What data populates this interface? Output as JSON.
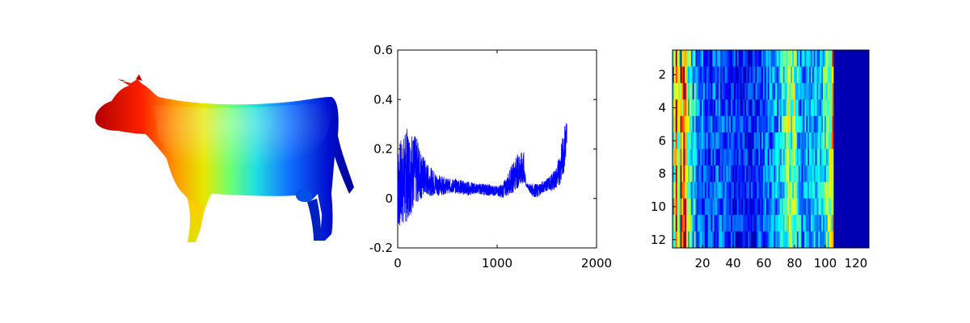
{
  "chart_data": [
    {
      "type": "image",
      "subject": "cow mesh colored by scalar field (red at head to blue at tail, jet colormap)"
    },
    {
      "type": "line",
      "x_range": [
        0,
        1700
      ],
      "xlim": [
        0,
        2000
      ],
      "ylim": [
        -0.2,
        0.6
      ],
      "xticks": [
        0,
        1000,
        2000
      ],
      "yticks": [
        -0.2,
        0,
        0.2,
        0.4,
        0.6
      ],
      "xtick_labels": [
        "0",
        "1000",
        "2000"
      ],
      "ytick_labels": [
        "-0.2",
        "0",
        "0.2",
        "0.4",
        "0.6"
      ],
      "color": "#0000ff",
      "envelope": [
        {
          "x": 0,
          "low": -0.13,
          "high": 0.22
        },
        {
          "x": 50,
          "low": -0.12,
          "high": 0.25
        },
        {
          "x": 100,
          "low": -0.09,
          "high": 0.29
        },
        {
          "x": 150,
          "low": -0.05,
          "high": 0.27
        },
        {
          "x": 200,
          "low": -0.02,
          "high": 0.24
        },
        {
          "x": 250,
          "low": 0.0,
          "high": 0.18
        },
        {
          "x": 300,
          "low": 0.01,
          "high": 0.14
        },
        {
          "x": 400,
          "low": 0.01,
          "high": 0.1
        },
        {
          "x": 500,
          "low": 0.02,
          "high": 0.08
        },
        {
          "x": 600,
          "low": 0.02,
          "high": 0.08
        },
        {
          "x": 700,
          "low": 0.01,
          "high": 0.07
        },
        {
          "x": 800,
          "low": 0.02,
          "high": 0.06
        },
        {
          "x": 900,
          "low": 0.01,
          "high": 0.06
        },
        {
          "x": 1000,
          "low": 0.01,
          "high": 0.05
        },
        {
          "x": 1050,
          "low": 0.0,
          "high": 0.06
        },
        {
          "x": 1100,
          "low": 0.01,
          "high": 0.09
        },
        {
          "x": 1150,
          "low": 0.02,
          "high": 0.14
        },
        {
          "x": 1200,
          "low": 0.04,
          "high": 0.18
        },
        {
          "x": 1270,
          "low": 0.05,
          "high": 0.19
        },
        {
          "x": 1290,
          "low": 0.05,
          "high": 0.06
        },
        {
          "x": 1350,
          "low": 0.01,
          "high": 0.06
        },
        {
          "x": 1400,
          "low": 0.0,
          "high": 0.06
        },
        {
          "x": 1450,
          "low": 0.02,
          "high": 0.07
        },
        {
          "x": 1500,
          "low": 0.03,
          "high": 0.08
        },
        {
          "x": 1550,
          "low": 0.03,
          "high": 0.1
        },
        {
          "x": 1600,
          "low": 0.04,
          "high": 0.13
        },
        {
          "x": 1640,
          "low": 0.06,
          "high": 0.21
        },
        {
          "x": 1670,
          "low": 0.1,
          "high": 0.28
        },
        {
          "x": 1700,
          "low": 0.17,
          "high": 0.34
        }
      ]
    },
    {
      "type": "heatmap",
      "rows": 12,
      "cols": 128,
      "xticks": [
        20,
        40,
        60,
        80,
        100,
        120
      ],
      "yticks": [
        2,
        4,
        6,
        8,
        10,
        12
      ],
      "xtick_labels": [
        "20",
        "40",
        "60",
        "80",
        "100",
        "120"
      ],
      "ytick_labels": [
        "2",
        "4",
        "6",
        "8",
        "10",
        "12"
      ],
      "colormap": "jet",
      "column_profile": [
        {
          "col": 1,
          "v": 0.35
        },
        {
          "col": 2,
          "v": 0.55
        },
        {
          "col": 3,
          "v": 0.8
        },
        {
          "col": 4,
          "v": 0.6
        },
        {
          "col": 5,
          "v": 0.5
        },
        {
          "col": 6,
          "v": 0.85
        },
        {
          "col": 7,
          "v": 0.65
        },
        {
          "col": 8,
          "v": 0.9
        },
        {
          "col": 9,
          "v": 0.75
        },
        {
          "col": 10,
          "v": 0.55
        },
        {
          "col": 11,
          "v": 0.45
        },
        {
          "col": 12,
          "v": 0.5
        },
        {
          "col": 13,
          "v": 0.35
        },
        {
          "col": 14,
          "v": 0.3
        },
        {
          "col": 15,
          "v": 0.38
        },
        {
          "col": 16,
          "v": 0.25
        },
        {
          "col": 20,
          "v": 0.22
        },
        {
          "col": 25,
          "v": 0.18
        },
        {
          "col": 30,
          "v": 0.22
        },
        {
          "col": 35,
          "v": 0.2
        },
        {
          "col": 40,
          "v": 0.16
        },
        {
          "col": 45,
          "v": 0.15
        },
        {
          "col": 50,
          "v": 0.14
        },
        {
          "col": 55,
          "v": 0.16
        },
        {
          "col": 60,
          "v": 0.22
        },
        {
          "col": 65,
          "v": 0.25
        },
        {
          "col": 70,
          "v": 0.3
        },
        {
          "col": 74,
          "v": 0.45
        },
        {
          "col": 76,
          "v": 0.55
        },
        {
          "col": 78,
          "v": 0.45
        },
        {
          "col": 80,
          "v": 0.5
        },
        {
          "col": 82,
          "v": 0.35
        },
        {
          "col": 85,
          "v": 0.25
        },
        {
          "col": 90,
          "v": 0.28
        },
        {
          "col": 95,
          "v": 0.3
        },
        {
          "col": 98,
          "v": 0.35
        },
        {
          "col": 100,
          "v": 0.4
        },
        {
          "col": 102,
          "v": 0.45
        },
        {
          "col": 104,
          "v": 0.55
        },
        {
          "col": 105,
          "v": 0.7
        },
        {
          "col": 106,
          "v": 0.05
        },
        {
          "col": 128,
          "v": 0.05
        }
      ]
    }
  ]
}
